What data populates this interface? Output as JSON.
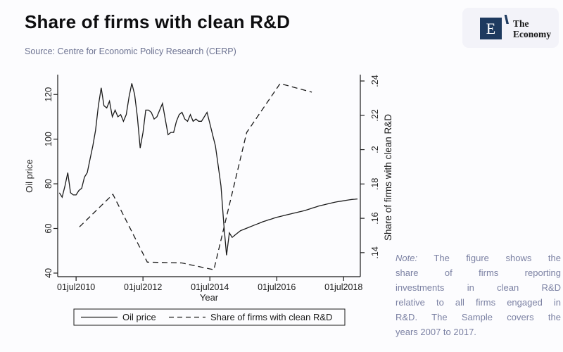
{
  "header": {
    "title": "Share of firms with clean R&D",
    "source": "Source: Centre for Economic Policy Research (CERP)",
    "logo": {
      "mark": "E",
      "name_line1": "The",
      "name_line2": "Economy"
    }
  },
  "note": {
    "label": "Note:",
    "line1_rest": "The figure shows the",
    "line2": "share of firms reporting",
    "line3": "investments in clean R&D",
    "line4": "relative to all firms engaged in",
    "line5": "R&D. The Sample covers the",
    "line6": "years 2007 to 2017."
  },
  "colors": {
    "line": "#1a1a1a",
    "logo_navy": "#1e3a5f",
    "muted_text": "#6b7190",
    "note_text": "#7b81a3"
  },
  "chart_data": {
    "type": "line",
    "xlabel": "Year",
    "ylabel_left": "Oil price",
    "ylabel_right": "Share of firms with clean R&D",
    "legend": [
      "Oil price",
      "Share of firms with clean R&D"
    ],
    "legend_position": "bottom",
    "grid": false,
    "x_range": [
      2009.95,
      2019.0
    ],
    "left_range": [
      38.4,
      128.9
    ],
    "right_range": [
      0.126,
      0.2437
    ],
    "x_ticks": [
      {
        "v": 2010.5,
        "label": "01jul2010"
      },
      {
        "v": 2012.5,
        "label": "01jul2012"
      },
      {
        "v": 2014.5,
        "label": "01jul2014"
      },
      {
        "v": 2016.5,
        "label": "01jul2016"
      },
      {
        "v": 2018.5,
        "label": "01jul2018"
      }
    ],
    "left_ticks": [
      {
        "v": 40,
        "label": "40"
      },
      {
        "v": 60,
        "label": "60"
      },
      {
        "v": 80,
        "label": "80"
      },
      {
        "v": 100,
        "label": "100"
      },
      {
        "v": 120,
        "label": "120"
      }
    ],
    "right_ticks": [
      {
        "v": 0.14,
        "label": ".14"
      },
      {
        "v": 0.16,
        "label": ".16"
      },
      {
        "v": 0.18,
        "label": ".18"
      },
      {
        "v": 0.2,
        "label": ".2"
      },
      {
        "v": 0.22,
        "label": ".22"
      },
      {
        "v": 0.24,
        "label": ".24"
      }
    ],
    "series": [
      {
        "name": "Oil price",
        "axis": "left",
        "line": "solid",
        "x_start": 2010.0,
        "x_step": 0.083333,
        "values": [
          76,
          74,
          79,
          85,
          76,
          75,
          75,
          77,
          78,
          83,
          85,
          91,
          97,
          104,
          115,
          123,
          115,
          114,
          117,
          110,
          113,
          110,
          111,
          108,
          111,
          119,
          125,
          120,
          110,
          96,
          103,
          113,
          113,
          112,
          109,
          110,
          113,
          116,
          109,
          102,
          103,
          103,
          108,
          111,
          112,
          109,
          108,
          111,
          108,
          109,
          108,
          108,
          110,
          112,
          107,
          102,
          97,
          88,
          79,
          62,
          48,
          58,
          56,
          57,
          58,
          59,
          59.5,
          60,
          60.5,
          61,
          61.5,
          62,
          62.5,
          63,
          63.4,
          63.8,
          64.2,
          64.6,
          65,
          65.3,
          65.6,
          65.9,
          66.2,
          66.5,
          66.8,
          67.1,
          67.4,
          67.7,
          68,
          68.4,
          68.8,
          69.2,
          69.6,
          70,
          70.3,
          70.6,
          70.9,
          71.2,
          71.5,
          71.8,
          72,
          72.2,
          72.4,
          72.6,
          72.8,
          73,
          73.1,
          73.2
        ]
      },
      {
        "name": "Share of firms with clean R&D",
        "axis": "right",
        "line": "dashed",
        "x": [
          2010.6,
          2011.6,
          2012.63,
          2013.66,
          2014.62,
          2015.6,
          2016.6,
          2017.55
        ],
        "y": [
          0.155,
          0.174,
          0.1345,
          0.134,
          0.13,
          0.21,
          0.2385,
          0.2335
        ]
      }
    ]
  }
}
